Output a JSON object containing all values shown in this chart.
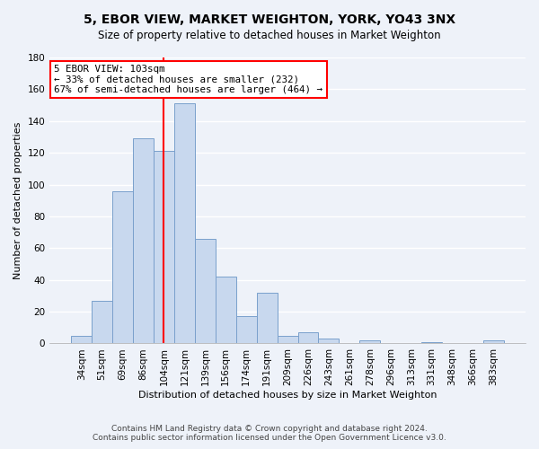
{
  "title": "5, EBOR VIEW, MARKET WEIGHTON, YORK, YO43 3NX",
  "subtitle": "Size of property relative to detached houses in Market Weighton",
  "xlabel": "Distribution of detached houses by size in Market Weighton",
  "ylabel": "Number of detached properties",
  "categories": [
    "34sqm",
    "51sqm",
    "69sqm",
    "86sqm",
    "104sqm",
    "121sqm",
    "139sqm",
    "156sqm",
    "174sqm",
    "191sqm",
    "209sqm",
    "226sqm",
    "243sqm",
    "261sqm",
    "278sqm",
    "296sqm",
    "313sqm",
    "331sqm",
    "348sqm",
    "366sqm",
    "383sqm"
  ],
  "values": [
    5,
    27,
    96,
    129,
    121,
    151,
    66,
    42,
    17,
    32,
    5,
    7,
    3,
    0,
    2,
    0,
    0,
    1,
    0,
    0,
    2
  ],
  "bar_color": "#c8d8ee",
  "bar_edge_color": "#7aa0cc",
  "vline_color": "red",
  "annotation_line1": "5 EBOR VIEW: 103sqm",
  "annotation_line2": "← 33% of detached houses are smaller (232)",
  "annotation_line3": "67% of semi-detached houses are larger (464) →",
  "annotation_box_color": "white",
  "annotation_box_edgecolor": "red",
  "ylim": [
    0,
    180
  ],
  "yticks": [
    0,
    20,
    40,
    60,
    80,
    100,
    120,
    140,
    160,
    180
  ],
  "footer_line1": "Contains HM Land Registry data © Crown copyright and database right 2024.",
  "footer_line2": "Contains public sector information licensed under the Open Government Licence v3.0.",
  "bg_color": "#eef2f9",
  "grid_color": "white",
  "title_fontsize": 10,
  "subtitle_fontsize": 8.5,
  "ylabel_fontsize": 8,
  "xlabel_fontsize": 8,
  "tick_fontsize": 7.5,
  "footer_fontsize": 6.5
}
